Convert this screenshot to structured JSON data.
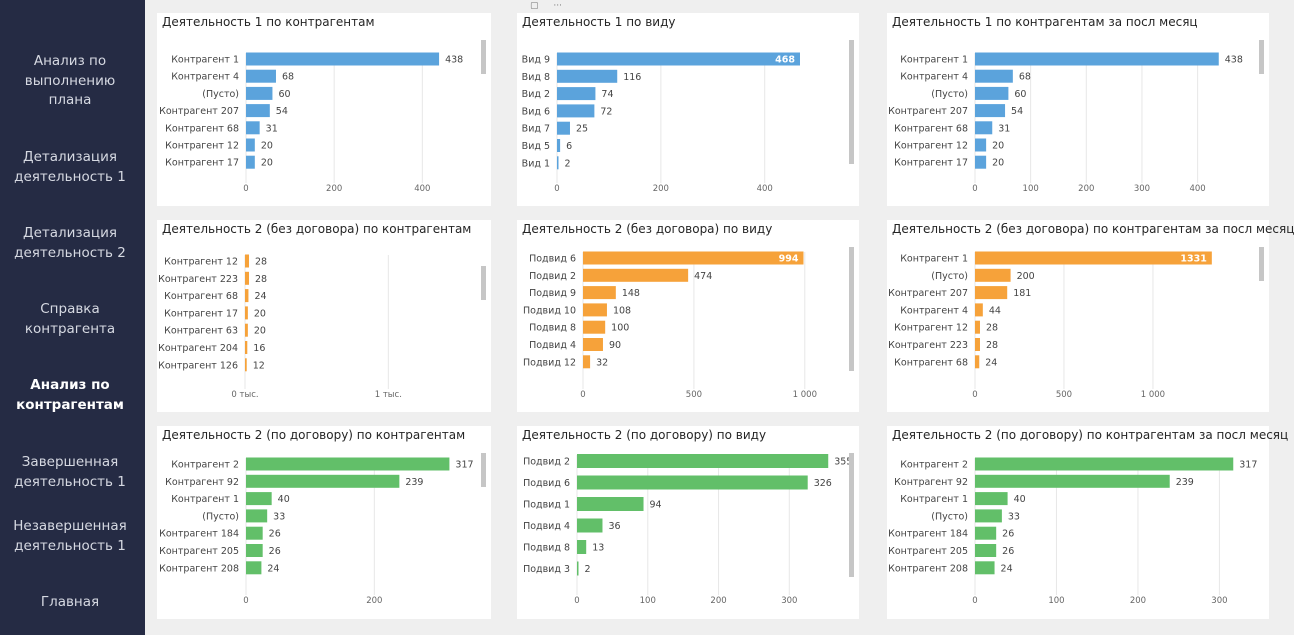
{
  "sidebar": {
    "items": [
      {
        "label": "Анализ по выполнению плана",
        "lines": [
          "Анализ по",
          "выполнению",
          "плана"
        ],
        "active": false
      },
      {
        "label": "Детализация деятельность 1",
        "lines": [
          "Детализация",
          "деятельность 1"
        ],
        "active": false
      },
      {
        "label": "Детализация деятельность 2",
        "lines": [
          "Детализация",
          "деятельность 2"
        ],
        "active": false
      },
      {
        "label": "Справка контрагента",
        "lines": [
          "Справка",
          "контрагента"
        ],
        "active": false
      },
      {
        "label": "Анализ по контрагентам",
        "lines": [
          "Анализ по",
          "контрагентам"
        ],
        "active": true
      },
      {
        "label": "Завершенная деятельность 1",
        "lines": [
          "Завершенная",
          "деятельность 1"
        ],
        "active": false
      },
      {
        "label": "Незавершенная деятельность 1",
        "lines": [
          "Незавершенная",
          "деятельность 1"
        ],
        "active": false
      },
      {
        "label": "Главная",
        "lines": [
          "Главная"
        ],
        "active": false
      }
    ]
  },
  "header_controls": {
    "more_icon": "ellipsis-icon",
    "focus_icon": "focus-icon",
    "more_text": "···"
  },
  "colors": {
    "blue": "#5ba3dc",
    "orange": "#f6a23a",
    "green": "#62bf69",
    "sidebar_bg": "#252b44"
  },
  "chart_data": [
    {
      "type": "bar",
      "orientation": "horizontal",
      "title": "Деятельность 1 по контрагентам",
      "color": "blue",
      "categories": [
        "Контрагент 1",
        "Контрагент 4",
        "(Пусто)",
        "Контрагент 207",
        "Контрагент 68",
        "Контрагент 12",
        "Контрагент 17"
      ],
      "values": [
        438,
        68,
        60,
        54,
        31,
        20,
        20
      ],
      "value_labels": [
        "438",
        "68",
        "60",
        "54",
        "31",
        "20",
        "20"
      ],
      "xlim": [
        0,
        490
      ],
      "ticks": [
        0,
        200,
        400
      ],
      "tick_labels": [
        "0",
        "200",
        "400"
      ]
    },
    {
      "type": "bar",
      "orientation": "horizontal",
      "title": "Деятельность 1 по виду",
      "color": "blue",
      "categories": [
        "Вид 9",
        "Вид 8",
        "Вид 2",
        "Вид 6",
        "Вид 7",
        "Вид 5",
        "Вид 1"
      ],
      "values": [
        468,
        116,
        74,
        72,
        25,
        6,
        2
      ],
      "value_labels": [
        "468",
        "116",
        "74",
        "72",
        "25",
        "6",
        "2"
      ],
      "inside_label_index": 0,
      "xlim": [
        0,
        520
      ],
      "ticks": [
        0,
        200,
        400
      ],
      "tick_labels": [
        "0",
        "200",
        "400"
      ]
    },
    {
      "type": "bar",
      "orientation": "horizontal",
      "title": "Деятельность 1 по контрагентам за посл месяц",
      "color": "blue",
      "categories": [
        "Контрагент 1",
        "Контрагент 4",
        "(Пусто)",
        "Контрагент 207",
        "Контрагент 68",
        "Контрагент 12",
        "Контрагент 17"
      ],
      "values": [
        438,
        68,
        60,
        54,
        31,
        20,
        20
      ],
      "value_labels": [
        "438",
        "68",
        "60",
        "54",
        "31",
        "20",
        "20"
      ],
      "xlim": [
        0,
        460
      ],
      "ticks": [
        0,
        100,
        200,
        300,
        400
      ],
      "tick_labels": [
        "0",
        "100",
        "200",
        "300",
        "400"
      ]
    },
    {
      "type": "bar",
      "orientation": "horizontal",
      "title": "Деятельность 2 (без договора) по контрагентам",
      "color": "orange",
      "categories": [
        "Контрагент 12",
        "Контрагент 223",
        "Контрагент 68",
        "Контрагент 17",
        "Контрагент 63",
        "Контрагент 204",
        "Контрагент 126"
      ],
      "values": [
        28,
        28,
        24,
        20,
        20,
        16,
        12
      ],
      "value_labels": [
        "28",
        "28",
        "24",
        "20",
        "20",
        "16",
        "12"
      ],
      "xlim": [
        0,
        1500
      ],
      "ticks": [
        0,
        1000
      ],
      "tick_labels": [
        "0 тыс.",
        "1 тыс."
      ]
    },
    {
      "type": "bar",
      "orientation": "horizontal",
      "title": "Деятельность 2 (без договора) по виду",
      "color": "orange",
      "categories": [
        "Подвид 6",
        "Подвид 2",
        "Подвид 9",
        "Подвид 10",
        "Подвид 8",
        "Подвид 4",
        "Подвид 12"
      ],
      "values": [
        994,
        474,
        148,
        108,
        100,
        90,
        32
      ],
      "value_labels": [
        "994",
        "474",
        "148",
        "108",
        "100",
        "90",
        "32"
      ],
      "inside_label_index": 0,
      "xlim": [
        0,
        1100
      ],
      "ticks": [
        0,
        500,
        1000
      ],
      "tick_labels": [
        "0",
        "500",
        "1 000"
      ]
    },
    {
      "type": "bar",
      "orientation": "horizontal",
      "title": "Деятельность 2 (без договора) по контрагентам за посл месяц",
      "color": "orange",
      "categories": [
        "Контрагент 1",
        "(Пусто)",
        "Контрагент 207",
        "Контрагент 4",
        "Контрагент 12",
        "Контрагент 223",
        "Контрагент 68"
      ],
      "values": [
        1331,
        200,
        181,
        44,
        28,
        28,
        24
      ],
      "value_labels": [
        "1331",
        "200",
        "181",
        "44",
        "28",
        "28",
        "24"
      ],
      "inside_label_index": 0,
      "xlim": [
        0,
        1450
      ],
      "ticks": [
        0,
        500,
        1000
      ],
      "tick_labels": [
        "0",
        "500",
        "1 000"
      ]
    },
    {
      "type": "bar",
      "orientation": "horizontal",
      "title": "Деятельность 2 (по договору) по контрагентам",
      "color": "green",
      "categories": [
        "Контрагент 2",
        "Контрагент 92",
        "Контрагент 1",
        "(Пусто)",
        "Контрагент 184",
        "Контрагент 205",
        "Контрагент 208"
      ],
      "values": [
        317,
        239,
        40,
        33,
        26,
        26,
        24
      ],
      "value_labels": [
        "317",
        "239",
        "40",
        "33",
        "26",
        "26",
        "24"
      ],
      "xlim": [
        0,
        360
      ],
      "ticks": [
        0,
        200
      ],
      "tick_labels": [
        "0",
        "200"
      ]
    },
    {
      "type": "bar",
      "orientation": "horizontal",
      "title": "Деятельность 2 (по договору) по виду",
      "color": "green",
      "categories": [
        "Подвид 2",
        "Подвид 6",
        "Подвид 1",
        "Подвид 4",
        "Подвид 8",
        "Подвид 3"
      ],
      "values": [
        355,
        326,
        94,
        36,
        13,
        2
      ],
      "value_labels": [
        "355",
        "326",
        "94",
        "36",
        "13",
        "2"
      ],
      "xlim": [
        0,
        390
      ],
      "ticks": [
        0,
        100,
        200,
        300
      ],
      "tick_labels": [
        "0",
        "100",
        "200",
        "300"
      ]
    },
    {
      "type": "bar",
      "orientation": "horizontal",
      "title": "Деятельность 2 (по договору) по контрагентам за посл месяц",
      "color": "green",
      "categories": [
        "Контрагент 2",
        "Контрагент 92",
        "Контрагент 1",
        "(Пусто)",
        "Контрагент 184",
        "Контрагент 205",
        "Контрагент 208"
      ],
      "values": [
        317,
        239,
        40,
        33,
        26,
        26,
        24
      ],
      "value_labels": [
        "317",
        "239",
        "40",
        "33",
        "26",
        "26",
        "24"
      ],
      "xlim": [
        0,
        340
      ],
      "ticks": [
        0,
        100,
        200,
        300
      ],
      "tick_labels": [
        "0",
        "100",
        "200",
        "300"
      ]
    }
  ]
}
